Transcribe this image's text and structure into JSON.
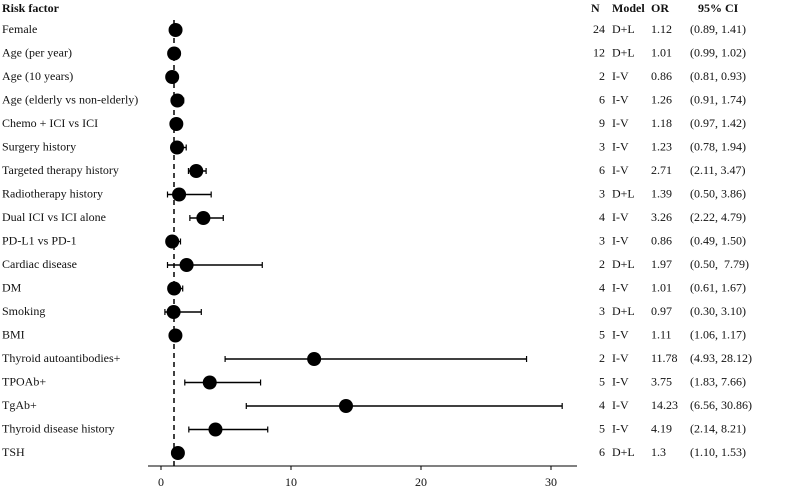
{
  "chart_data": {
    "type": "forest",
    "headers": {
      "factor": "Risk factor",
      "n": "N",
      "model": "Model",
      "or": "OR",
      "ci": "95% CI"
    },
    "categories": [
      "Female",
      "Age  (per year)",
      "Age  (10 years)",
      "Age (elderly vs non-elderly)",
      "Chemo + ICI vs ICI",
      "Surgery history",
      "Targeted therapy history",
      "Radiotherapy history",
      "Dual ICI vs ICI alone",
      "PD-L1 vs PD-1",
      "Cardiac disease",
      "DM",
      "Smoking",
      "BMI",
      "Thyroid autoantibodies+",
      "TPOAb+",
      "TgAb+",
      "Thyroid disease history",
      "TSH"
    ],
    "n": [
      24,
      12,
      2,
      6,
      9,
      3,
      6,
      3,
      4,
      3,
      2,
      4,
      3,
      5,
      2,
      5,
      4,
      5,
      6
    ],
    "model": [
      "D+L",
      "D+L",
      "I-V",
      "I-V",
      "I-V",
      "I-V",
      "I-V",
      "D+L",
      "I-V",
      "I-V",
      "D+L",
      "I-V",
      "D+L",
      "I-V",
      "I-V",
      "I-V",
      "I-V",
      "I-V",
      "D+L"
    ],
    "values": [
      1.12,
      1.01,
      0.86,
      1.26,
      1.18,
      1.23,
      2.71,
      1.39,
      3.26,
      0.86,
      1.97,
      1.01,
      0.97,
      1.11,
      11.78,
      3.75,
      14.23,
      4.19,
      1.3
    ],
    "ci_low": [
      0.89,
      0.99,
      0.81,
      0.91,
      0.97,
      0.78,
      2.11,
      0.5,
      2.22,
      0.49,
      0.5,
      0.61,
      0.3,
      1.06,
      4.93,
      1.83,
      6.56,
      2.14,
      1.1
    ],
    "ci_high": [
      1.41,
      1.02,
      0.93,
      1.74,
      1.42,
      1.94,
      3.47,
      3.86,
      4.79,
      1.5,
      7.79,
      1.67,
      3.1,
      1.17,
      28.12,
      7.66,
      30.86,
      8.21,
      1.53
    ],
    "ci_labels": [
      "(0.89, 1.41)",
      "(0.99, 1.02)",
      "(0.81, 0.93)",
      "(0.91, 1.74)",
      "(0.97, 1.42)",
      "(0.78, 1.94)",
      "(2.11, 3.47)",
      "(0.50, 3.86)",
      "(2.22, 4.79)",
      "(0.49, 1.50)",
      "(0.50,  7.79)",
      "(0.61, 1.67)",
      "(0.30, 3.10)",
      "(1.06, 1.17)",
      "(4.93, 28.12)",
      "(1.83, 7.66)",
      "(6.56, 30.86)",
      "(2.14, 8.21)",
      "(1.10, 1.53)"
    ],
    "ref_line": 1,
    "color": "#000000",
    "xlim": [
      -1,
      32
    ],
    "xticks": [
      0,
      10,
      20,
      30
    ]
  }
}
